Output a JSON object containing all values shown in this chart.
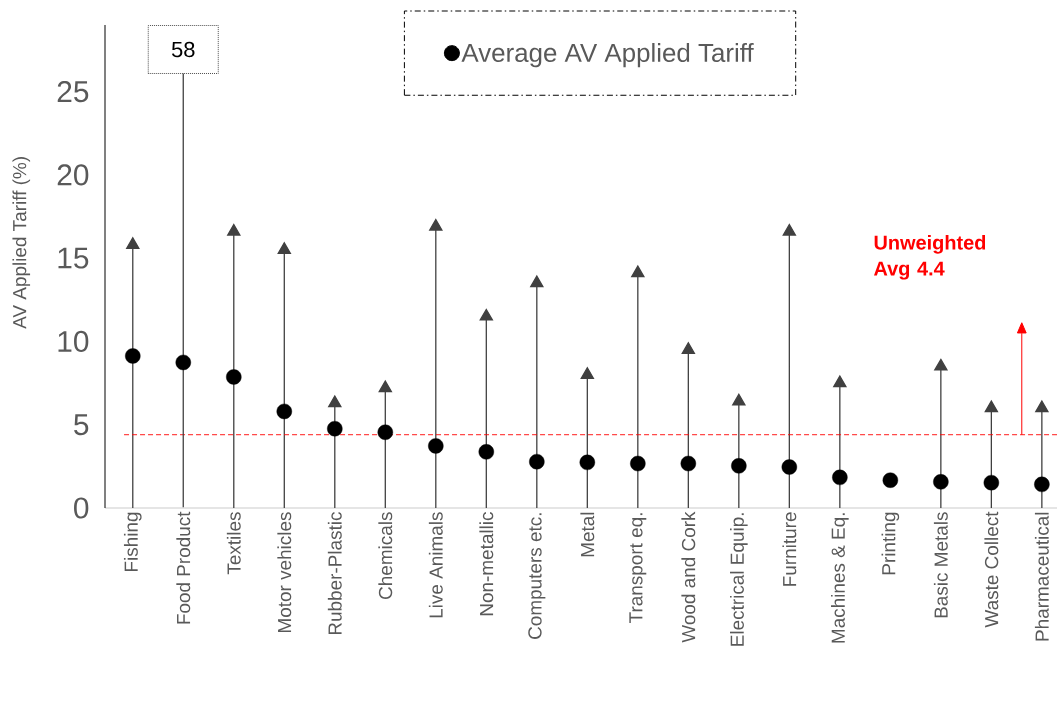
{
  "chart_data": {
    "type": "scatter",
    "ylabel": "AV Applied Tariff (%)",
    "categories": [
      "Fishing",
      "Food Product",
      "Textiles",
      "Motor vehicles",
      "Rubber-Plastic",
      "Chemicals",
      "Live Animals",
      "Non-metallic",
      "Computers etc.",
      "Metal",
      "Transport eq.",
      "Wood and Cork",
      "Electrical Equip.",
      "Furniture",
      "Machines & Eq.",
      "Printing",
      "Basic Metals",
      "Waste Collect",
      "Pharmaceutical"
    ],
    "series": [
      {
        "type": "lollipop",
        "marker": "triangle",
        "color": "#404040",
        "values": [
          15.8,
          null,
          16.6,
          15.5,
          6.3,
          7.2,
          16.9,
          11.5,
          13.5,
          8.0,
          14.1,
          9.5,
          6.4,
          16.6,
          7.5,
          null,
          8.5,
          6.0,
          6.0
        ]
      },
      {
        "marker": "circle",
        "name": "Average AV Applied Tariff",
        "color": "#000000",
        "values": [
          9.13,
          8.74,
          7.87,
          5.8,
          4.76,
          4.55,
          3.73,
          3.37,
          2.78,
          2.74,
          2.67,
          2.67,
          2.53,
          2.46,
          1.84,
          1.67,
          1.57,
          1.52,
          1.42
        ]
      }
    ],
    "ylim": [
      0,
      29
    ],
    "yticks": [
      0,
      5,
      10,
      15,
      20,
      25
    ],
    "ref_lines": [
      {
        "axis": "y",
        "value": 4.4,
        "label": "**Unweighted Avg 4.4**",
        "color": "#ff0000",
        "line_style": "dashed"
      }
    ],
    "annotations": [
      "58"
    ],
    "legend": "top"
  }
}
